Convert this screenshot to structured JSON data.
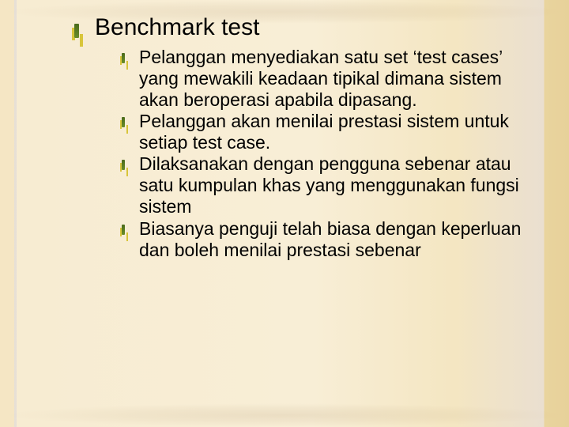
{
  "slide": {
    "background": {
      "base_color": "#f7ecd2",
      "left_edge_color": "#f5e6c4",
      "right_edge_color": "#e7d19a",
      "crease_color": "#a67a2e"
    },
    "bullet_marker": {
      "stem_color": "#4a6b1a",
      "accent_dot_color": "#d8c53a"
    },
    "title": "Benchmark test",
    "title_fontsize_pt": 30,
    "body_fontsize_pt": 23,
    "font_family": "Comic Sans MS",
    "items": [
      "Pelanggan menyediakan satu set ‘test cases’ yang mewakili keadaan tipikal dimana sistem akan beroperasi apabila dipasang.",
      "Pelanggan akan menilai prestasi sistem untuk setiap test case.",
      "Dilaksanakan dengan pengguna sebenar atau satu kumpulan khas yang menggunakan fungsi sistem",
      "Biasanya penguji telah biasa dengan keperluan dan boleh menilai prestasi sebenar"
    ]
  }
}
